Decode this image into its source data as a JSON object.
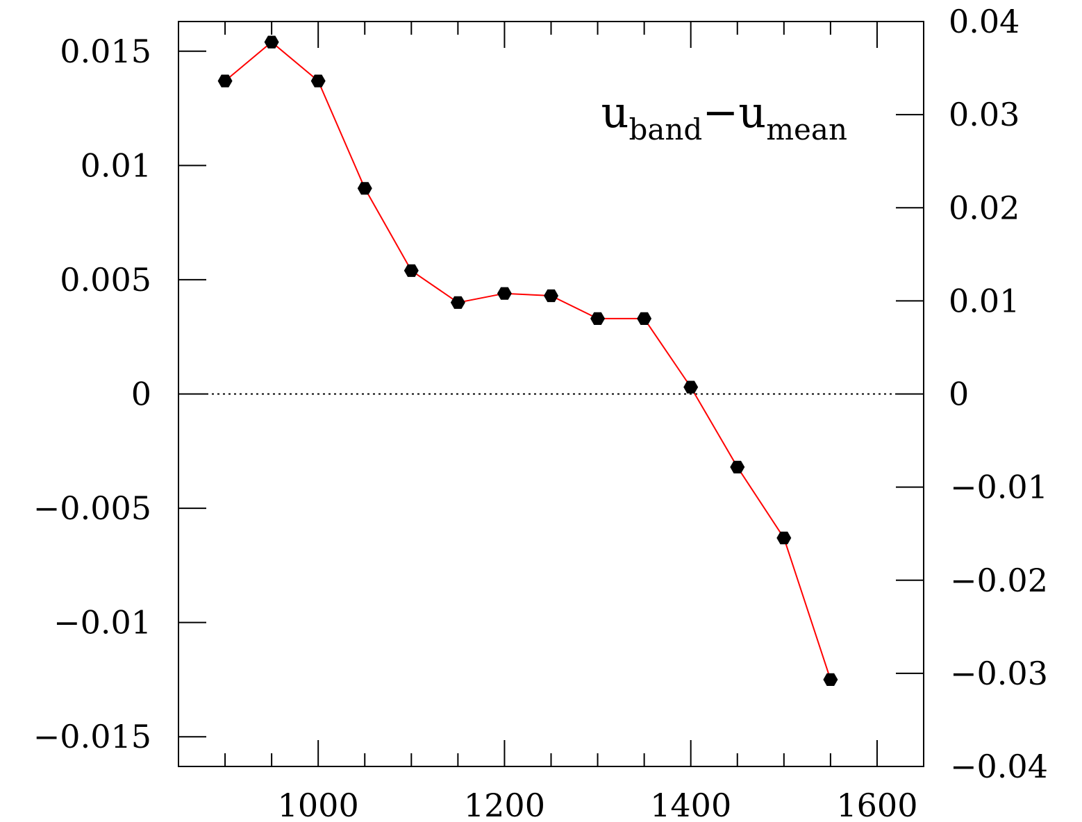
{
  "chart_data": {
    "type": "scatter",
    "title": "",
    "xlabel": "",
    "ylabel": "",
    "xlim": [
      850,
      1650
    ],
    "ylim": [
      -0.0163,
      0.0163
    ],
    "y2lim": [
      -0.04,
      0.04
    ],
    "grid": false,
    "legend": "none",
    "x_ticks": [
      {
        "value": 1000,
        "label": "1000"
      },
      {
        "value": 1200,
        "label": "1200"
      },
      {
        "value": 1400,
        "label": "1400"
      },
      {
        "value": 1600,
        "label": "1600"
      }
    ],
    "x_minor_ticks": [
      900,
      950,
      1050,
      1100,
      1150,
      1250,
      1300,
      1350,
      1450,
      1500,
      1550
    ],
    "y_ticks": [
      {
        "value": 0.015,
        "label": "0.015"
      },
      {
        "value": 0.01,
        "label": "0.01"
      },
      {
        "value": 0.005,
        "label": "0.005"
      },
      {
        "value": 0,
        "label": "0"
      },
      {
        "value": -0.005,
        "label": "−0.005"
      },
      {
        "value": -0.01,
        "label": "−0.01"
      },
      {
        "value": -0.015,
        "label": "−0.015"
      }
    ],
    "y2_ticks": [
      {
        "value": 0.04,
        "label": "0.04"
      },
      {
        "value": 0.03,
        "label": "0.03"
      },
      {
        "value": 0.02,
        "label": "0.02"
      },
      {
        "value": 0.01,
        "label": "0.01"
      },
      {
        "value": 0,
        "label": "0"
      },
      {
        "value": -0.01,
        "label": "−0.01"
      },
      {
        "value": -0.02,
        "label": "−0.02"
      },
      {
        "value": -0.03,
        "label": "−0.03"
      },
      {
        "value": -0.04,
        "label": "−0.04"
      }
    ],
    "series": [
      {
        "color": "#ff0000",
        "marker": "hexagon",
        "marker_color": "#000000",
        "x": [
          900,
          950,
          1000,
          1050,
          1100,
          1150,
          1200,
          1250,
          1300,
          1350,
          1400,
          1450,
          1500,
          1550
        ],
        "y": [
          0.0137,
          0.0154,
          0.0137,
          0.009,
          0.0054,
          0.004,
          0.0044,
          0.0043,
          0.0033,
          0.0033,
          0.0003,
          -0.0032,
          -0.0063,
          -0.0125
        ]
      }
    ],
    "reference_line": {
      "y": 0,
      "style": "dotted"
    },
    "annotation": {
      "base": "u",
      "sub1": "band",
      "minus": "−",
      "sub2": "mean",
      "position": "top-right"
    }
  }
}
